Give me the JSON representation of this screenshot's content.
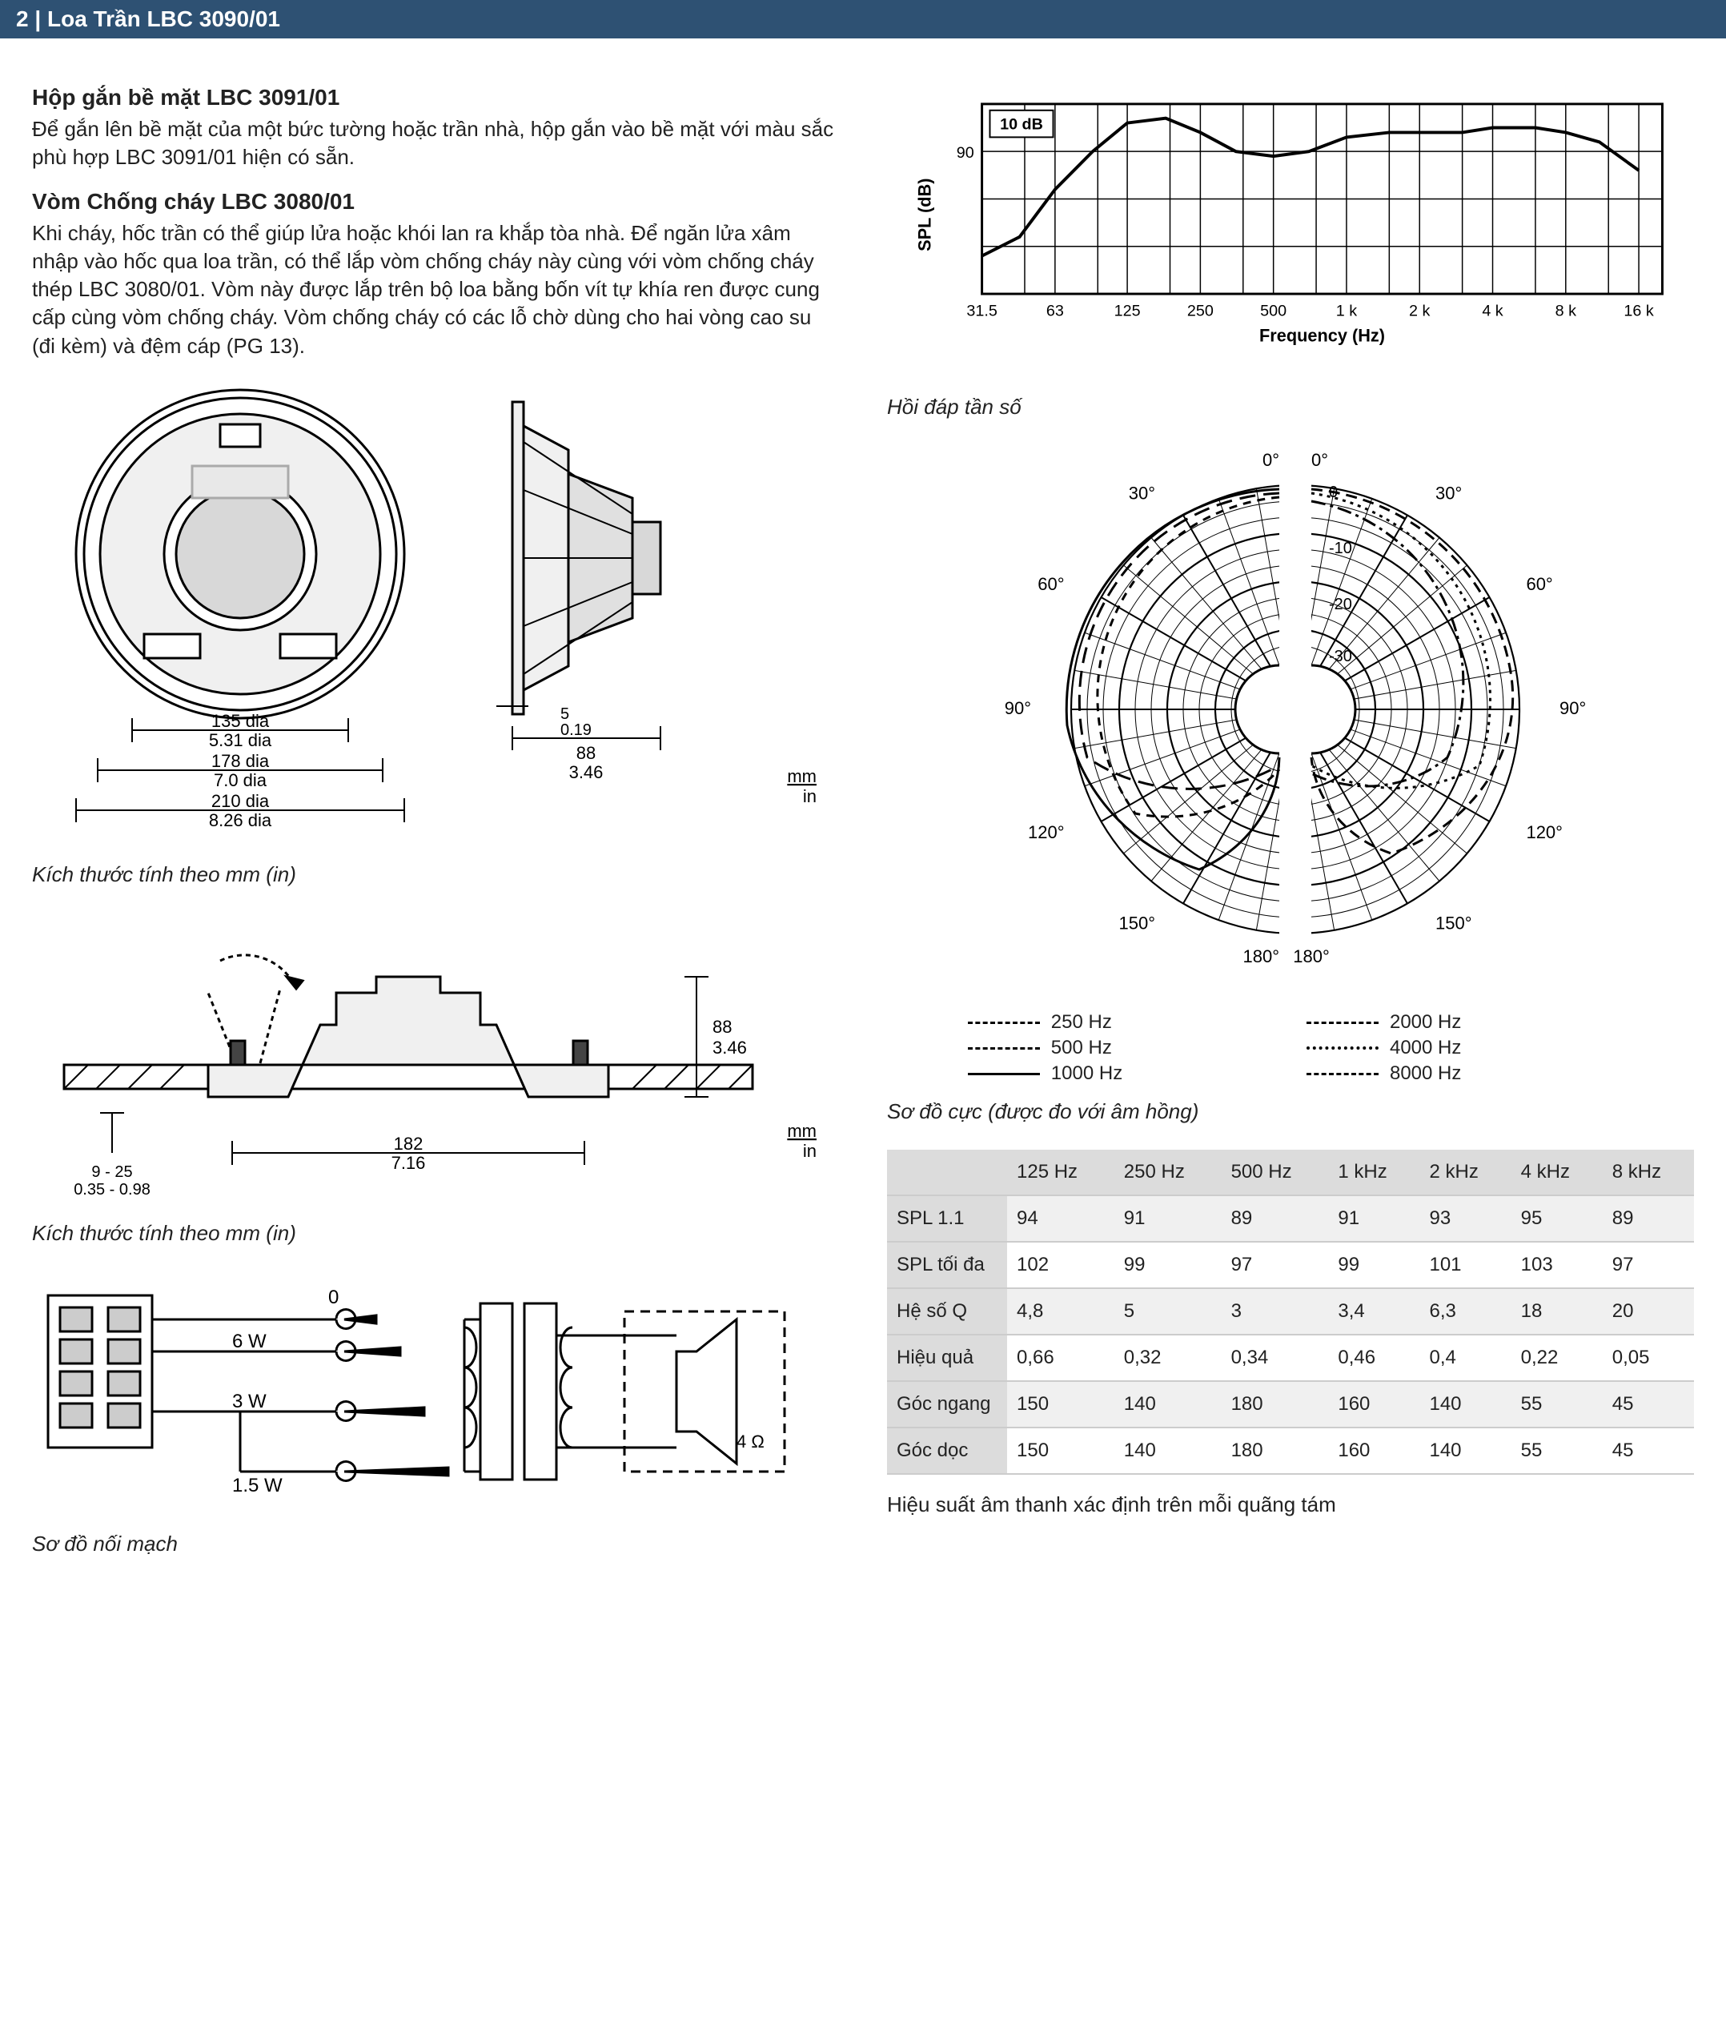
{
  "header": {
    "page_no": "2",
    "title": "Loa Trần LBC 3090/01"
  },
  "left": {
    "sec1": {
      "h": "Hộp gắn bề mặt LBC 3091/01",
      "p": "Để gắn lên bề mặt của một bức tường hoặc trần nhà, hộp gắn vào bề mặt với màu sắc phù hợp LBC 3091/01 hiện có sẵn."
    },
    "sec2": {
      "h": "Vòm Chống cháy LBC 3080/01",
      "p": "Khi cháy, hốc trần có thể giúp lửa hoặc khói lan ra khắp tòa nhà. Để ngăn lửa xâm nhập vào hốc qua loa trần, có thể lắp vòm chống cháy này cùng với vòm chống cháy thép LBC 3080/01. Vòm này được lắp trên bộ loa bằng bốn vít tự khía ren được cung cấp cùng vòm chống cháy. Vòm chống cháy có các lỗ chờ dùng cho hai vòng cao su (đi kèm) và đệm cáp (PG 13)."
    },
    "dims1": {
      "d135_mm": "135 dia",
      "d135_in": "5.31 dia",
      "d178_mm": "178 dia",
      "d178_in": "7.0 dia",
      "d210_mm": "210 dia",
      "d210_in": "8.26 dia",
      "t5_mm": "5",
      "t5_in": "0.19",
      "w88_mm": "88",
      "w88_in": "3.46",
      "unit_mm": "mm",
      "unit_in": "in",
      "caption": "Kích thước tính theo mm (in)"
    },
    "dims2": {
      "h88_mm": "88",
      "h88_in": "3.46",
      "w182_mm": "182",
      "w182_in": "7.16",
      "range_mm": "9 - 25",
      "range_in": "0.35 - 0.98",
      "unit_mm": "mm",
      "unit_in": "in",
      "caption": "Kích thước tính theo mm (in)"
    },
    "circuit": {
      "tap0": "0",
      "tap6": "6 W",
      "tap3": "3 W",
      "tap15": "1.5 W",
      "imp": "4 Ω",
      "caption": "Sơ đồ nối mạch"
    }
  },
  "right": {
    "freq_chart": {
      "type": "line",
      "y_label": "SPL (dB)",
      "x_label": "Frequency (Hz)",
      "y_ticks": [
        "90"
      ],
      "x_ticks": [
        "31.5",
        "63",
        "125",
        "250",
        "500",
        "1 k",
        "2 k",
        "4 k",
        "8 k",
        "16 k"
      ],
      "badge": "10 dB",
      "line_color": "#000000",
      "grid_color": "#000000",
      "background_color": "#ffffff",
      "line_width": 3,
      "ylim_db": [
        60,
        100
      ],
      "data_approx_db": {
        "31.5": 68,
        "45": 72,
        "63": 82,
        "90": 90,
        "125": 96,
        "180": 97,
        "250": 94,
        "350": 90,
        "500": 89,
        "700": 90,
        "1000": 93,
        "1500": 94,
        "2000": 94,
        "3000": 94,
        "4000": 95,
        "6000": 95,
        "8000": 94,
        "11000": 92,
        "16000": 86
      },
      "caption": "Hồi đáp tần số"
    },
    "polar": {
      "angles": [
        "0°",
        "30°",
        "60°",
        "90°",
        "120°",
        "150°",
        "180°"
      ],
      "rings_db": [
        "0",
        "-10",
        "-20",
        "-30"
      ],
      "legend": [
        {
          "label": "250 Hz",
          "dash": "d1"
        },
        {
          "label": "2000 Hz",
          "dash": "d4"
        },
        {
          "label": "500 Hz",
          "dash": "d2"
        },
        {
          "label": "4000 Hz",
          "dash": "d5"
        },
        {
          "label": "1000 Hz",
          "dash": "d3"
        },
        {
          "label": "8000 Hz",
          "dash": "d6"
        }
      ],
      "line_color": "#000000",
      "caption": "Sơ đồ cực (được đo với âm hồng)"
    },
    "table": {
      "columns": [
        "",
        "125 Hz",
        "250 Hz",
        "500 Hz",
        "1 kHz",
        "2 kHz",
        "4 kHz",
        "8 kHz"
      ],
      "rows": [
        [
          "SPL 1.1",
          "94",
          "91",
          "89",
          "91",
          "93",
          "95",
          "89"
        ],
        [
          "SPL tối đa",
          "102",
          "99",
          "97",
          "99",
          "101",
          "103",
          "97"
        ],
        [
          "Hệ số Q",
          "4,8",
          "5",
          "3",
          "3,4",
          "6,3",
          "18",
          "20"
        ],
        [
          "Hiệu quả",
          "0,66",
          "0,32",
          "0,34",
          "0,46",
          "0,4",
          "0,22",
          "0,05"
        ],
        [
          "Góc ngang",
          "150",
          "140",
          "180",
          "160",
          "140",
          "55",
          "45"
        ],
        [
          "Góc dọc",
          "150",
          "140",
          "180",
          "160",
          "140",
          "55",
          "45"
        ]
      ],
      "header_bg": "#dcdcdc",
      "alt_bg": "#f0f0f0",
      "border_color": "#cccccc",
      "note": "Hiệu suất âm thanh xác định trên mỗi quãng tám"
    }
  }
}
